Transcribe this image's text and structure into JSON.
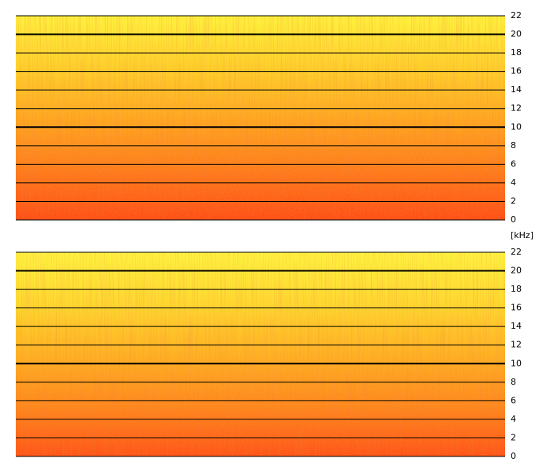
{
  "chart_data": [
    {
      "type": "spectrogram",
      "ylabel": "[kHz]",
      "ylim": [
        0,
        22
      ],
      "yticks": [
        0,
        2,
        4,
        6,
        8,
        10,
        12,
        14,
        16,
        18,
        20,
        22
      ],
      "bold_ticks": [
        10,
        20
      ],
      "colors": [
        "#ff4a12",
        "#ff7a18",
        "#ffa61e",
        "#ffd028",
        "#fff23a"
      ]
    },
    {
      "type": "spectrogram",
      "ylim": [
        0,
        22
      ],
      "yticks": [
        0,
        2,
        4,
        6,
        8,
        10,
        12,
        14,
        16,
        18,
        20,
        22
      ],
      "bold_ticks": [
        10,
        20
      ],
      "colors": [
        "#ff5014",
        "#ff861a",
        "#ffb020",
        "#ffd82c",
        "#fff43c"
      ]
    }
  ]
}
